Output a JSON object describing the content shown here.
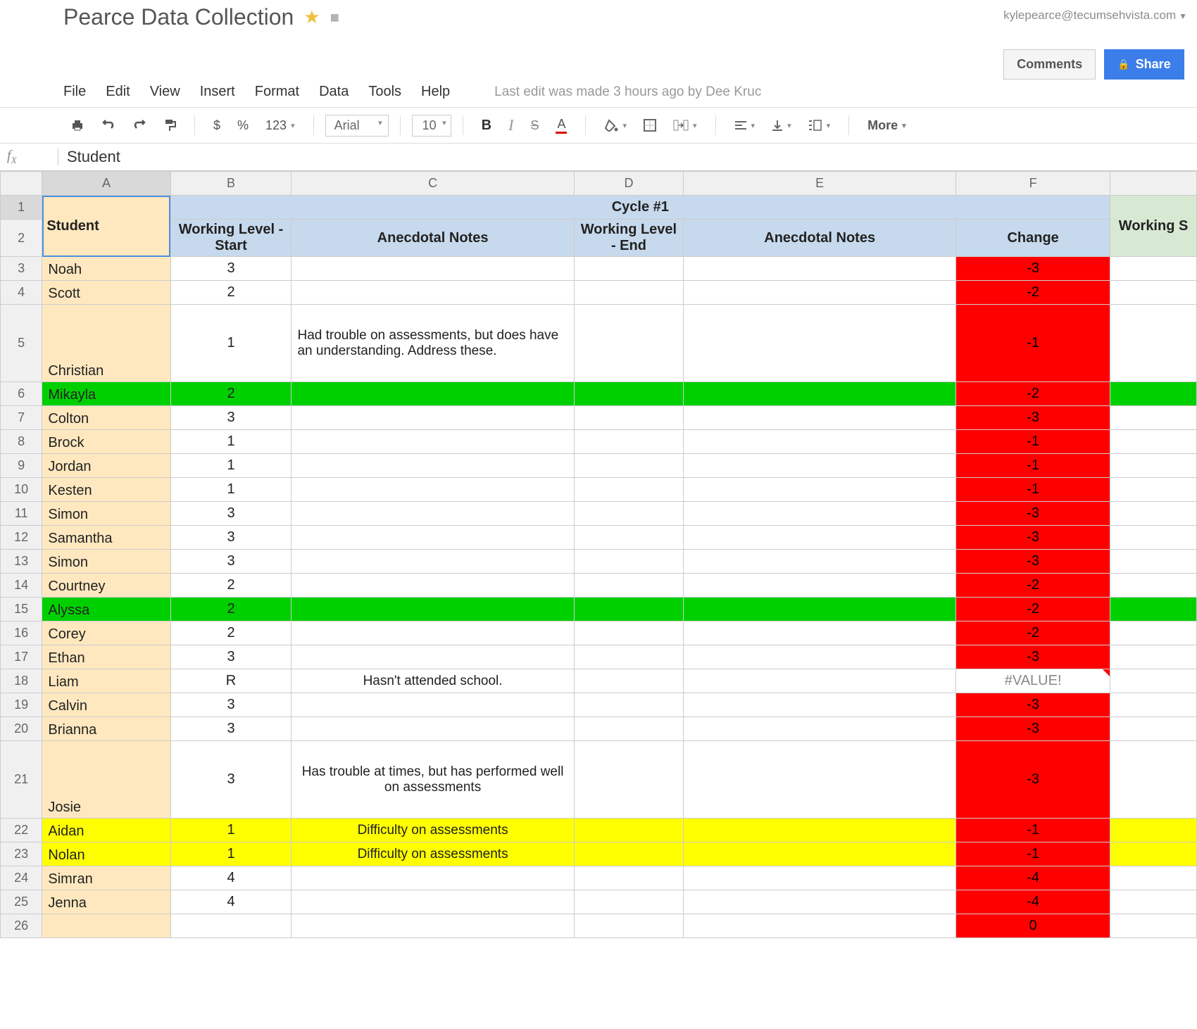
{
  "user_email": "kylepearce@tecumsehvista.com",
  "doc_title": "Pearce Data Collection",
  "comments_btn": "Comments",
  "share_btn": "Share",
  "menus": [
    "File",
    "Edit",
    "View",
    "Insert",
    "Format",
    "Data",
    "Tools",
    "Help"
  ],
  "edit_info": "Last edit was made 3 hours ago by Dee Kruc",
  "toolbar": {
    "currency": "$",
    "percent": "%",
    "numfmt": "123",
    "font": "Arial",
    "size": "10",
    "bold": "B",
    "italic": "I",
    "strike": "S",
    "textA": "A",
    "more": "More"
  },
  "formula": {
    "fx": "fx",
    "cell": "Student"
  },
  "columns": [
    "A",
    "B",
    "C",
    "D",
    "E",
    "F"
  ],
  "cycle_header": "Cycle #1",
  "headers": {
    "student": "Student",
    "wls": "Working Level - Start",
    "an1": "Anecdotal Notes",
    "wle": "Working Level - End",
    "an2": "Anecdotal Notes",
    "change": "Change",
    "next": "Working S"
  },
  "colors": {
    "name_bg": "#ffe8bf",
    "blue_hdr": "#c7d9ec",
    "green_hdr": "#d7e9d3",
    "red": "#ff0000",
    "green": "#00d000",
    "yellow": "#ffff00"
  },
  "rows": [
    {
      "n": "3",
      "name": "Noah",
      "b": "3",
      "c": "",
      "f": "-3"
    },
    {
      "n": "4",
      "name": "Scott",
      "b": "2",
      "c": "",
      "f": "-2"
    },
    {
      "n": "5",
      "name": "Christian",
      "b": "1",
      "c": "Had trouble on assessments, but does have an understanding. Address these.",
      "f": "-1",
      "tall": true
    },
    {
      "n": "6",
      "name": "Mikayla",
      "b": "2",
      "c": "",
      "f": "-2",
      "hl": "green"
    },
    {
      "n": "7",
      "name": "Colton",
      "b": "3",
      "c": "",
      "f": "-3"
    },
    {
      "n": "8",
      "name": "Brock",
      "b": "1",
      "c": "",
      "f": "-1"
    },
    {
      "n": "9",
      "name": "Jordan",
      "b": "1",
      "c": "",
      "f": "-1"
    },
    {
      "n": "10",
      "name": "Kesten",
      "b": "1",
      "c": "",
      "f": "-1"
    },
    {
      "n": "11",
      "name": "Simon",
      "b": "3",
      "c": "",
      "f": "-3"
    },
    {
      "n": "12",
      "name": "Samantha",
      "b": "3",
      "c": "",
      "f": "-3"
    },
    {
      "n": "13",
      "name": "Simon",
      "b": "3",
      "c": "",
      "f": "-3"
    },
    {
      "n": "14",
      "name": "Courtney",
      "b": "2",
      "c": "",
      "f": "-2"
    },
    {
      "n": "15",
      "name": "Alyssa",
      "b": "2",
      "c": "",
      "f": "-2",
      "hl": "green"
    },
    {
      "n": "16",
      "name": "Corey",
      "b": "2",
      "c": "",
      "f": "-2"
    },
    {
      "n": "17",
      "name": "Ethan",
      "b": "3",
      "c": "",
      "f": "-3"
    },
    {
      "n": "18",
      "name": "Liam",
      "b": "R",
      "c": "Hasn't attended school.",
      "f": "#VALUE!",
      "err": true,
      "centerNote": true
    },
    {
      "n": "19",
      "name": "Calvin",
      "b": "3",
      "c": "",
      "f": "-3"
    },
    {
      "n": "20",
      "name": "Brianna",
      "b": "3",
      "c": "",
      "f": "-3"
    },
    {
      "n": "21",
      "name": "Josie",
      "b": "3",
      "c": "Has trouble at times, but has performed well on assessments",
      "f": "-3",
      "tall": true,
      "centerNote": true
    },
    {
      "n": "22",
      "name": "Aidan",
      "b": "1",
      "c": "Difficulty on assessments",
      "f": "-1",
      "hl": "yellow",
      "centerNote": true
    },
    {
      "n": "23",
      "name": "Nolan",
      "b": "1",
      "c": "Difficulty on assessments",
      "f": "-1",
      "hl": "yellow",
      "centerNote": true
    },
    {
      "n": "24",
      "name": "Simran",
      "b": "4",
      "c": "",
      "f": "-4"
    },
    {
      "n": "25",
      "name": "Jenna",
      "b": "4",
      "c": "",
      "f": "-4"
    },
    {
      "n": "26",
      "name": "",
      "b": "",
      "c": "",
      "f": "0",
      "partial": true
    }
  ]
}
